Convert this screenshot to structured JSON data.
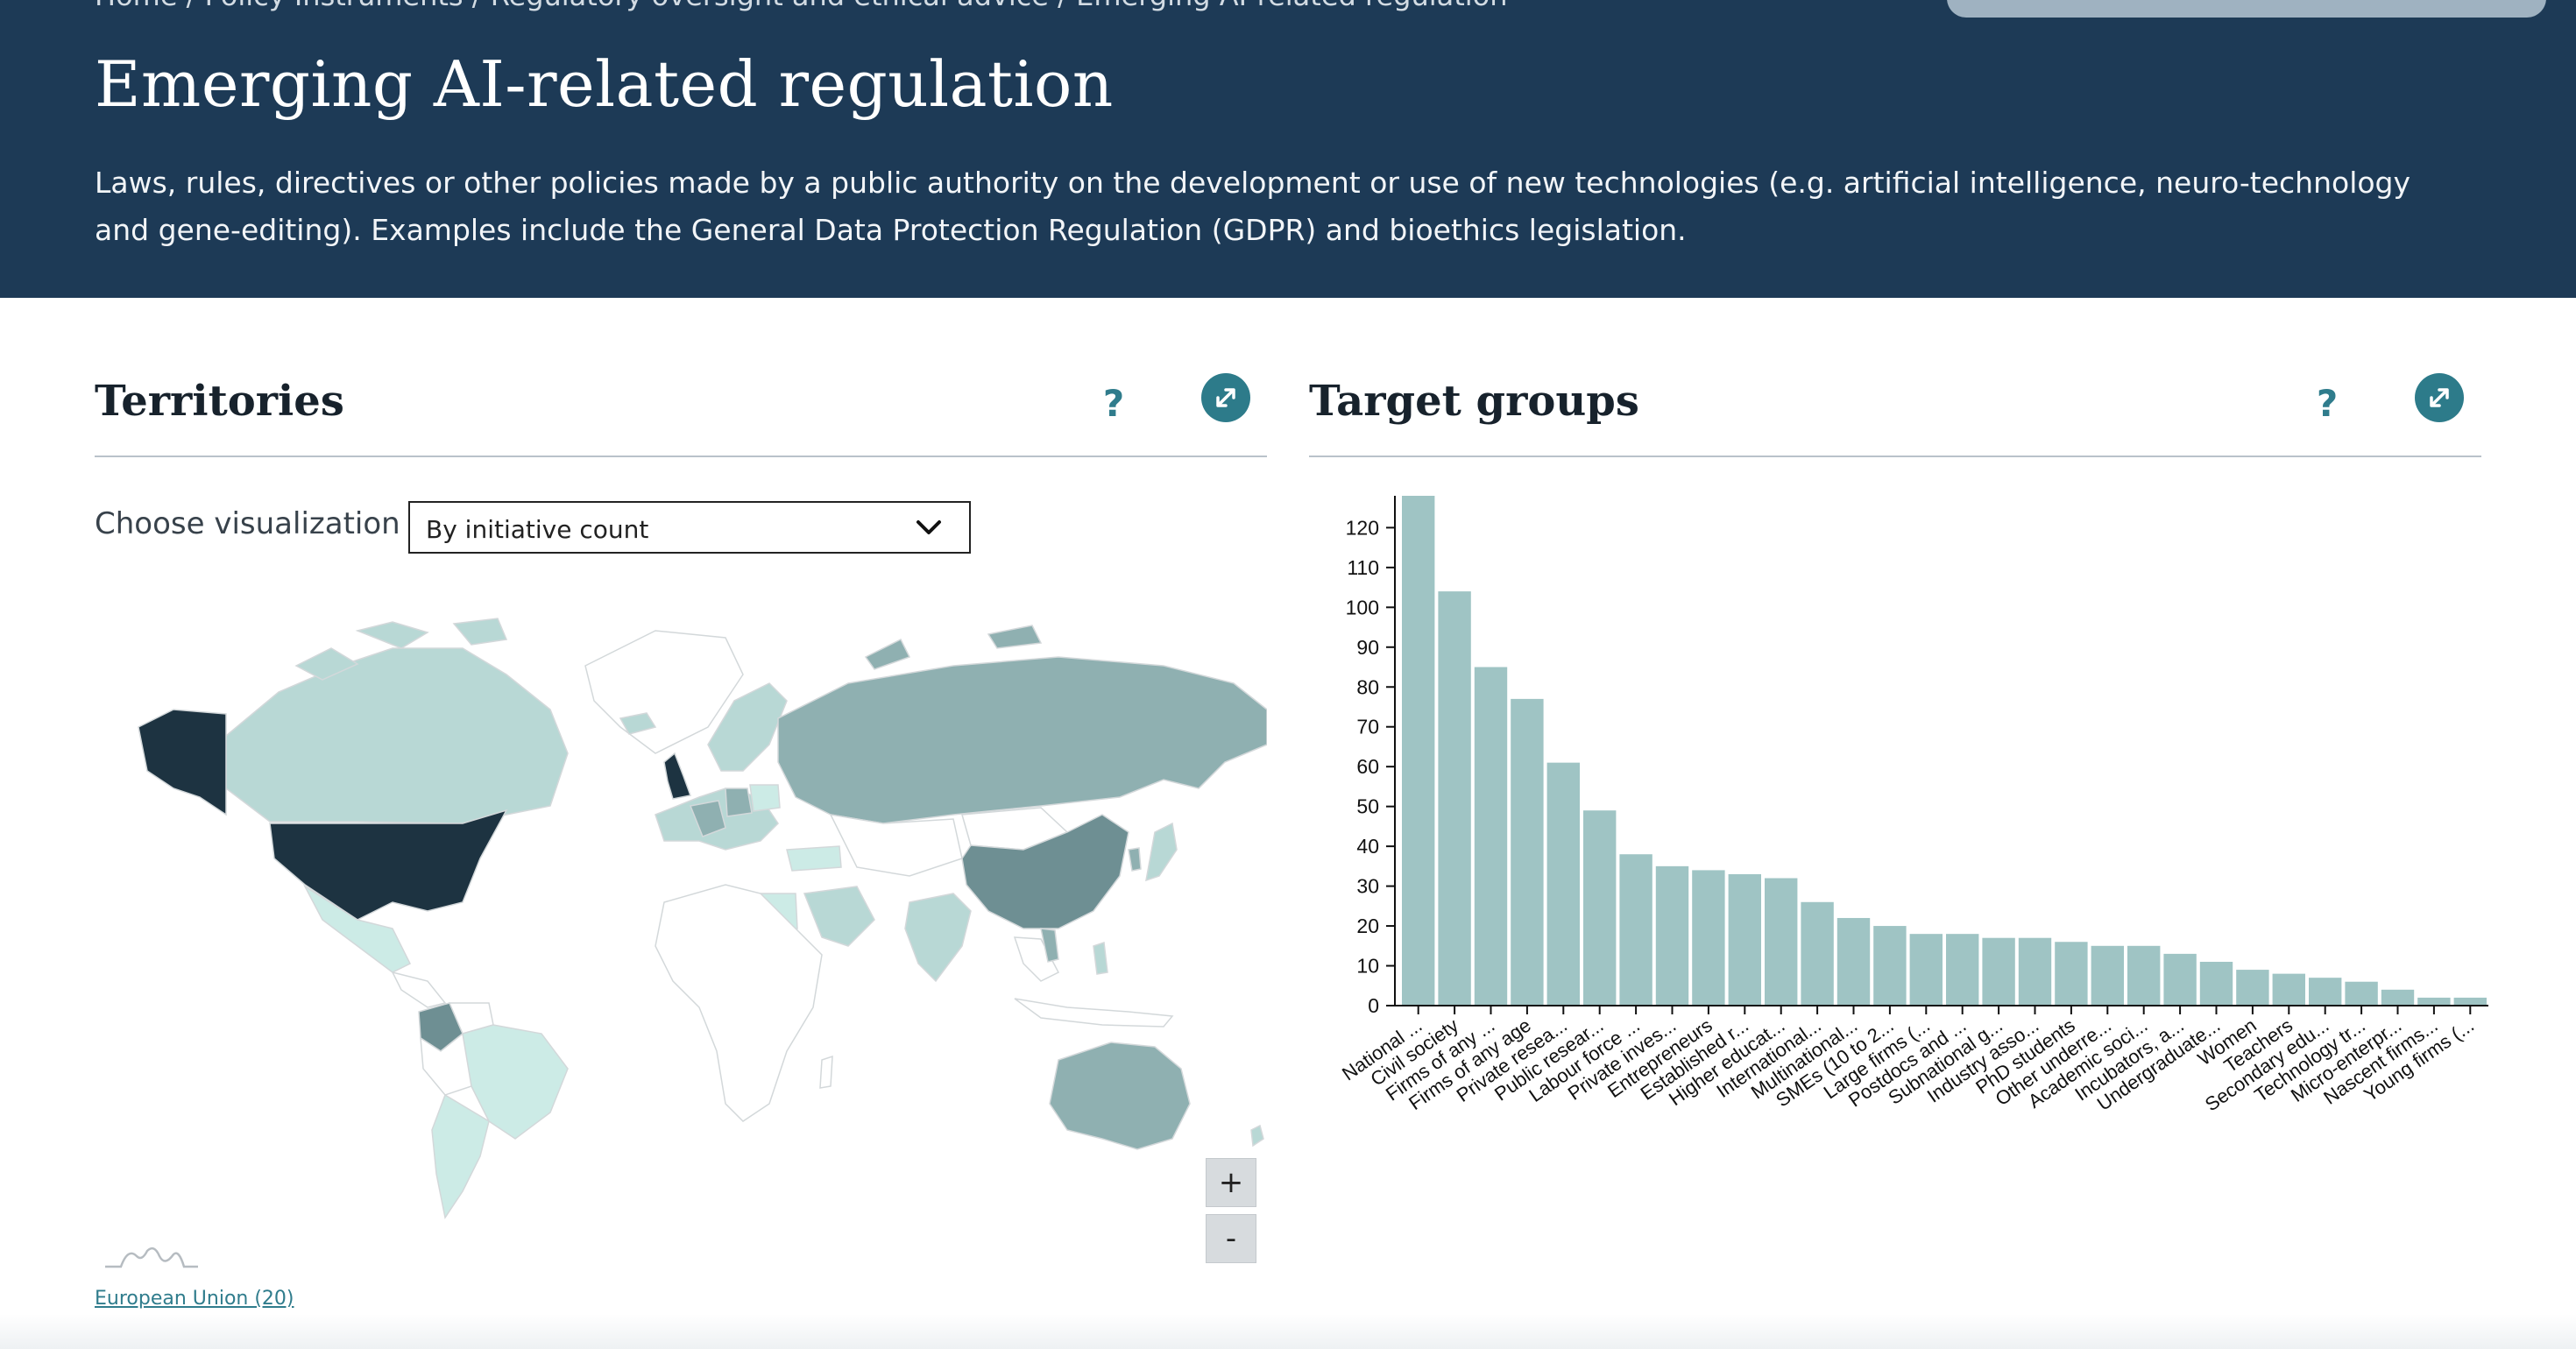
{
  "hero": {
    "breadcrumb": "Home / Policy Instruments / Regulatory oversight and ethical advice / Emerging AI-related regulation",
    "title": "Emerging AI-related regulation",
    "description": "Laws, rules, directives or other policies made by a public authority on the development or use of new technologies (e.g. artificial intelligence, neuro-technology and gene-editing). Examples include the General Data Protection Regulation (GDPR) and bioethics legislation."
  },
  "territories": {
    "title": "Territories",
    "help_label": "?",
    "choose_label": "Choose visualization",
    "select_value": "By initiative count",
    "zoom_in_label": "+",
    "zoom_out_label": "-",
    "eu_link": "European Union (20)",
    "colors": {
      "darkest": "#1d3341",
      "dark": "#6e8f93",
      "mid": "#8fb0b1",
      "light": "#b8d8d5",
      "lightest": "#ccebe6",
      "none": "#ffffff",
      "border": "#d3d8da"
    }
  },
  "target_groups": {
    "title": "Target groups",
    "help_label": "?"
  },
  "chart_data": {
    "type": "bar",
    "bar_color": "#9fc4c4",
    "categories": [
      "National ...",
      "Civil society",
      "Firms of any ...",
      "Firms of any age",
      "Private resea...",
      "Public resear...",
      "Labour force ...",
      "Private inves...",
      "Entrepreneurs",
      "Established r...",
      "Higher educat...",
      "International...",
      "Multinational...",
      "SMEs (10 to 2...",
      "Large firms (...",
      "Postdocs and ...",
      "Subnational g...",
      "Industry asso...",
      "PhD students",
      "Other underre...",
      "Academic soci...",
      "Incubators, a...",
      "Undergraduate...",
      "Women",
      "Teachers",
      "Secondary edu...",
      "Technology tr...",
      "Micro-enterpr...",
      "Nascent firms...",
      "Young firms (..."
    ],
    "values": [
      128,
      104,
      85,
      77,
      61,
      49,
      38,
      35,
      34,
      33,
      32,
      26,
      22,
      20,
      18,
      18,
      17,
      17,
      16,
      15,
      15,
      13,
      11,
      9,
      8,
      7,
      6,
      4,
      2,
      2
    ],
    "yticks": [
      0,
      10,
      20,
      30,
      40,
      50,
      60,
      70,
      80,
      90,
      100,
      110,
      120
    ],
    "ylim": [
      0,
      128
    ],
    "grid": false,
    "xlabel": "",
    "ylabel": ""
  }
}
